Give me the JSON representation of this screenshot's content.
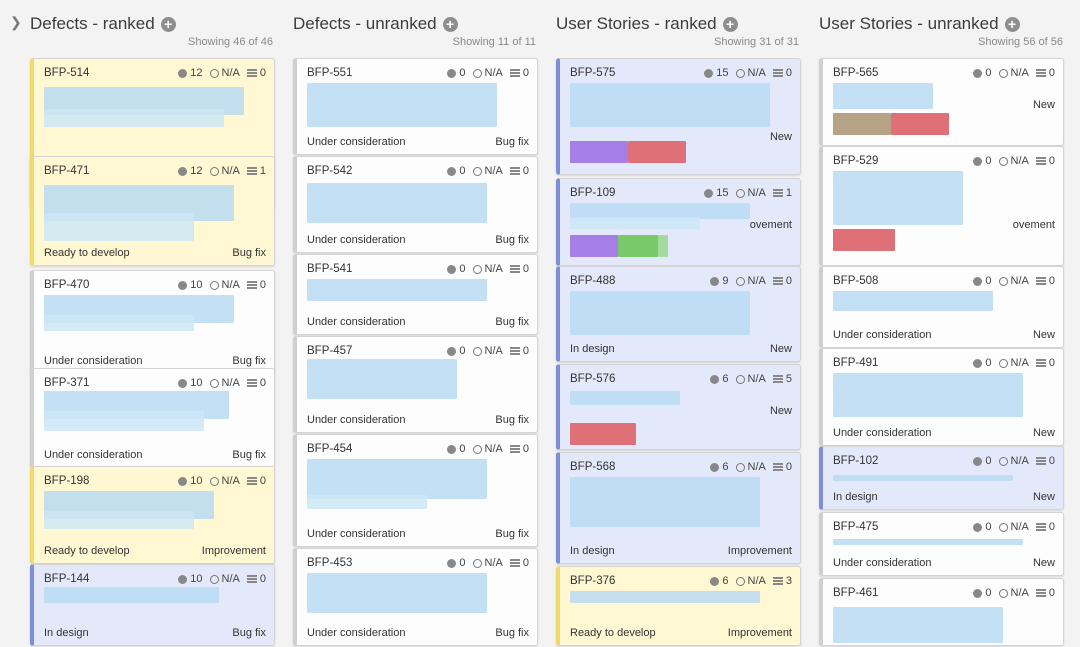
{
  "columns": [
    {
      "title": "Defects - ranked",
      "count": "Showing 46 of 46",
      "cards": [
        {
          "id": "BFP-514",
          "count1": "12",
          "estimate": "N/A",
          "tasks": "0",
          "status": "Ready to develop",
          "type": "Bug fix",
          "color": "yellow"
        },
        {
          "id": "BFP-471",
          "count1": "12",
          "estimate": "N/A",
          "tasks": "1",
          "status": "Ready to develop",
          "type": "Bug fix",
          "color": "yellow"
        },
        {
          "id": "BFP-470",
          "count1": "10",
          "estimate": "N/A",
          "tasks": "0",
          "status": "Under consideration",
          "type": "Bug fix",
          "color": "white"
        },
        {
          "id": "BFP-371",
          "count1": "10",
          "estimate": "N/A",
          "tasks": "0",
          "status": "Under consideration",
          "type": "Bug fix",
          "color": "white"
        },
        {
          "id": "BFP-198",
          "count1": "10",
          "estimate": "N/A",
          "tasks": "0",
          "status": "Ready to develop",
          "type": "Improvement",
          "color": "yellow"
        },
        {
          "id": "BFP-144",
          "count1": "10",
          "estimate": "N/A",
          "tasks": "0",
          "status": "In design",
          "type": "Bug fix",
          "color": "blue"
        }
      ]
    },
    {
      "title": "Defects - unranked",
      "count": "Showing 11 of 11",
      "cards": [
        {
          "id": "BFP-551",
          "count1": "0",
          "estimate": "N/A",
          "tasks": "0",
          "status": "Under consideration",
          "type": "Bug fix",
          "color": "white"
        },
        {
          "id": "BFP-542",
          "count1": "0",
          "estimate": "N/A",
          "tasks": "0",
          "status": "Under consideration",
          "type": "Bug fix",
          "color": "white"
        },
        {
          "id": "BFP-541",
          "count1": "0",
          "estimate": "N/A",
          "tasks": "0",
          "status": "Under consideration",
          "type": "Bug fix",
          "color": "white"
        },
        {
          "id": "BFP-457",
          "count1": "0",
          "estimate": "N/A",
          "tasks": "0",
          "status": "Under consideration",
          "type": "Bug fix",
          "color": "white"
        },
        {
          "id": "BFP-454",
          "count1": "0",
          "estimate": "N/A",
          "tasks": "0",
          "status": "Under consideration",
          "type": "Bug fix",
          "color": "white"
        },
        {
          "id": "BFP-453",
          "count1": "0",
          "estimate": "N/A",
          "tasks": "0",
          "status": "Under consideration",
          "type": "Bug fix",
          "color": "white"
        }
      ]
    },
    {
      "title": "User Stories - ranked",
      "count": "Showing 31 of 31",
      "cards": [
        {
          "id": "BFP-575",
          "count1": "15",
          "estimate": "N/A",
          "tasks": "0",
          "status": "",
          "type": "New",
          "color": "blue"
        },
        {
          "id": "BFP-109",
          "count1": "15",
          "estimate": "N/A",
          "tasks": "1",
          "status": "",
          "type": "ovement",
          "color": "blue"
        },
        {
          "id": "BFP-488",
          "count1": "9",
          "estimate": "N/A",
          "tasks": "0",
          "status": "In design",
          "type": "New",
          "color": "blue"
        },
        {
          "id": "BFP-576",
          "count1": "6",
          "estimate": "N/A",
          "tasks": "5",
          "status": "",
          "type": "New",
          "color": "blue"
        },
        {
          "id": "BFP-568",
          "count1": "6",
          "estimate": "N/A",
          "tasks": "0",
          "status": "In design",
          "type": "Improvement",
          "color": "blue"
        },
        {
          "id": "BFP-376",
          "count1": "6",
          "estimate": "N/A",
          "tasks": "3",
          "status": "Ready to develop",
          "type": "Improvement",
          "color": "yellow"
        }
      ]
    },
    {
      "title": "User Stories - unranked",
      "count": "Showing 56 of 56",
      "cards": [
        {
          "id": "BFP-565",
          "count1": "0",
          "estimate": "N/A",
          "tasks": "0",
          "status": "",
          "type": "New",
          "color": "white"
        },
        {
          "id": "BFP-529",
          "count1": "0",
          "estimate": "N/A",
          "tasks": "0",
          "status": "",
          "type": "ovement",
          "color": "white"
        },
        {
          "id": "BFP-508",
          "count1": "0",
          "estimate": "N/A",
          "tasks": "0",
          "status": "Under consideration",
          "type": "New",
          "color": "white"
        },
        {
          "id": "BFP-491",
          "count1": "0",
          "estimate": "N/A",
          "tasks": "0",
          "status": "Under consideration",
          "type": "New",
          "color": "white"
        },
        {
          "id": "BFP-102",
          "count1": "0",
          "estimate": "N/A",
          "tasks": "0",
          "status": "In design",
          "type": "New",
          "color": "blue"
        },
        {
          "id": "BFP-475",
          "count1": "0",
          "estimate": "N/A",
          "tasks": "0",
          "status": "Under consideration",
          "type": "New",
          "color": "white"
        },
        {
          "id": "BFP-461",
          "count1": "0",
          "estimate": "N/A",
          "tasks": "0",
          "status": "",
          "type": "",
          "color": "white"
        }
      ]
    }
  ]
}
